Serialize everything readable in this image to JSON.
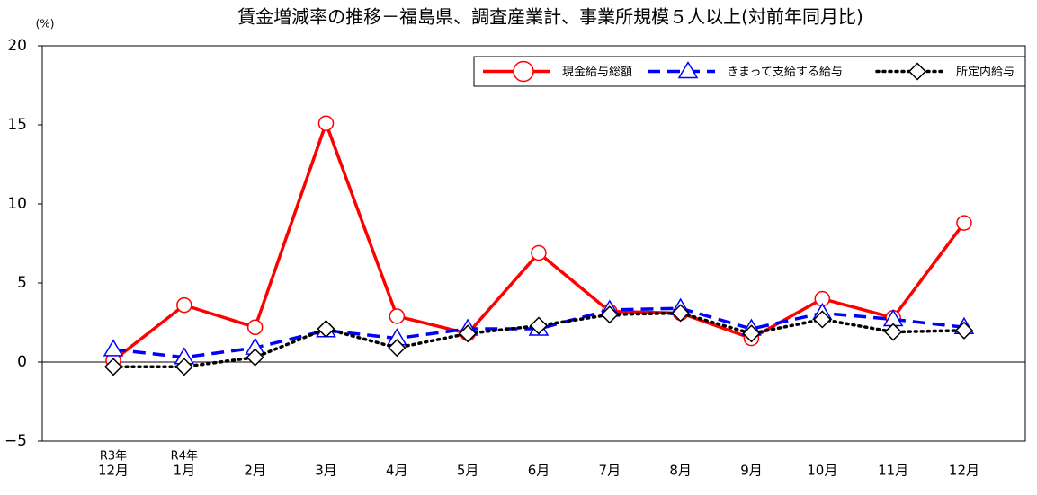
{
  "chart_data": {
    "type": "line",
    "title": "賃金増減率の推移－福島県、調査産業計、事業所規模５人以上(対前年同月比)",
    "y_unit": "(%)",
    "category_years": [
      "R3年",
      "R4年",
      null,
      null,
      null,
      null,
      null,
      null,
      null,
      null,
      null,
      null,
      null
    ],
    "categories": [
      "12月",
      "1月",
      "2月",
      "3月",
      "4月",
      "5月",
      "6月",
      "7月",
      "8月",
      "9月",
      "10月",
      "11月",
      "12月"
    ],
    "ylim": [
      -5,
      20
    ],
    "yticks": [
      {
        "value": -5,
        "label": "−5"
      },
      0,
      5,
      10,
      15,
      20
    ],
    "legend": "upper right",
    "series": [
      {
        "name": "現金給与総額",
        "color": "#ff0000",
        "line_style": "solid",
        "marker": "circle",
        "values": [
          0.1,
          3.6,
          2.2,
          15.1,
          2.9,
          1.8,
          6.9,
          3.2,
          3.1,
          1.5,
          4.0,
          2.8,
          8.8
        ]
      },
      {
        "name": "きまって支給する給与",
        "color": "#0000ff",
        "line_style": "dashed",
        "marker": "triangle",
        "values": [
          0.8,
          0.3,
          0.9,
          2.0,
          1.5,
          2.1,
          2.1,
          3.3,
          3.4,
          2.1,
          3.1,
          2.7,
          2.2
        ]
      },
      {
        "name": "所定内給与",
        "color": "#000000",
        "line_style": "dotted",
        "marker": "diamond",
        "values": [
          -0.3,
          -0.3,
          0.3,
          2.1,
          0.9,
          1.8,
          2.3,
          3.0,
          3.1,
          1.8,
          2.7,
          1.9,
          2.0
        ]
      }
    ]
  }
}
